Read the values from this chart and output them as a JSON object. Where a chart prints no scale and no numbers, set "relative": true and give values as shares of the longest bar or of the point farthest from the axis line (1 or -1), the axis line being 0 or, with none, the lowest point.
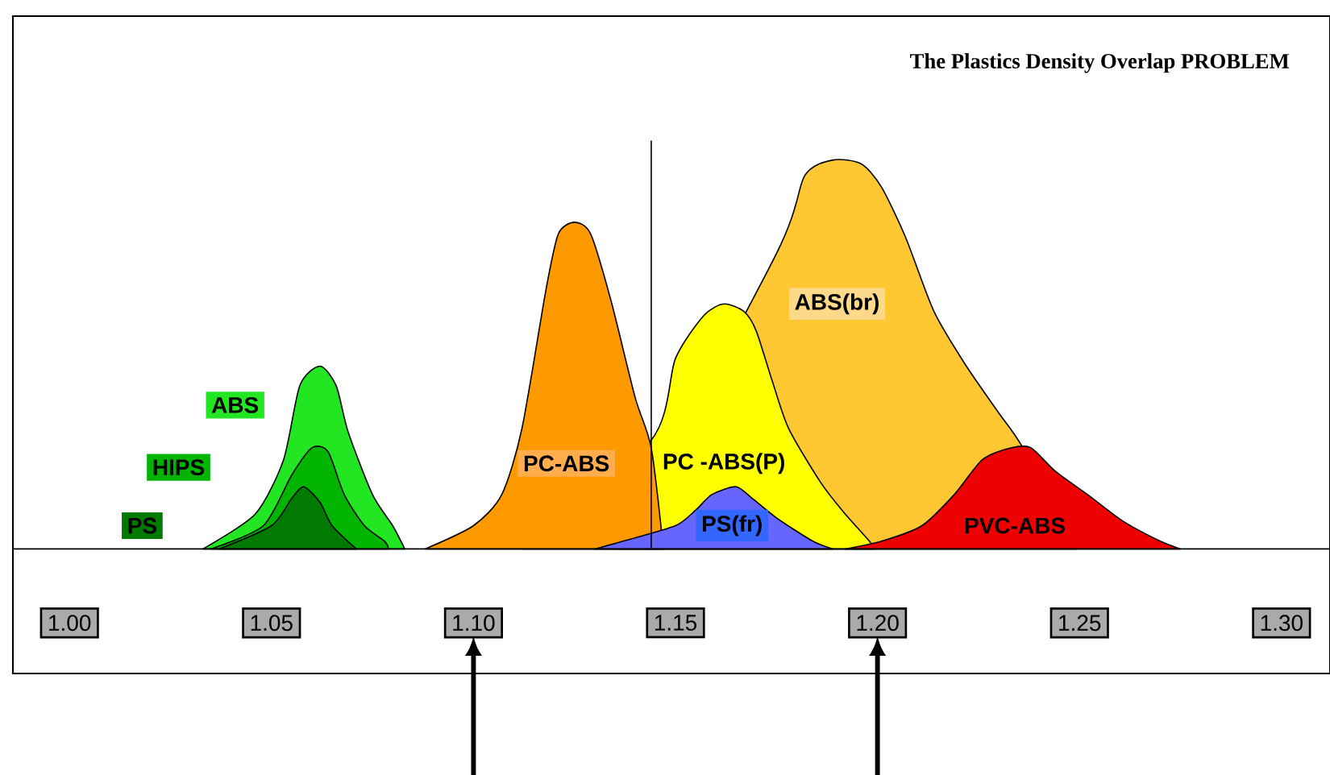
{
  "chart_data": {
    "type": "area",
    "title": "The Plastics Density Overlap PROBLEM",
    "relative": true,
    "legend": false,
    "tick_labels": "x",
    "xlim": [
      0.986,
      1.312
    ],
    "xticks": [
      {
        "value": 1.0,
        "label": "1.00"
      },
      1.05,
      {
        "value": 1.1,
        "label": "1.10"
      },
      1.15,
      {
        "value": 1.2,
        "label": "1.20"
      },
      1.25,
      {
        "value": 1.3,
        "label": "1.30"
      }
    ],
    "ref_lines": [
      {
        "axis": "x",
        "value": 1.144,
        "color": "#000000"
      }
    ],
    "series": [
      {
        "name": "ABS",
        "color": "#22e622",
        "x": [
          1.033,
          1.046,
          1.053,
          1.057,
          1.062,
          1.066,
          1.069,
          1.075,
          1.08,
          1.083
        ],
        "values": [
          0,
          0.09,
          0.23,
          0.42,
          0.47,
          0.42,
          0.3,
          0.14,
          0.06,
          0
        ]
      },
      {
        "name": "HIPS",
        "color": "#00b400",
        "x": [
          1.035,
          1.048,
          1.055,
          1.06,
          1.064,
          1.068,
          1.073,
          1.078,
          1.079
        ],
        "values": [
          0,
          0.06,
          0.19,
          0.26,
          0.25,
          0.14,
          0.06,
          0.02,
          0
        ]
      },
      {
        "name": "PS",
        "color": "#007a00",
        "x": [
          1.037,
          1.05,
          1.055,
          1.058,
          1.062,
          1.065,
          1.071
        ],
        "values": [
          0,
          0.06,
          0.13,
          0.16,
          0.12,
          0.06,
          0
        ]
      },
      {
        "name": "ABS(br)",
        "color": "#ffc833",
        "x": [
          1.136,
          1.138,
          1.168,
          1.175,
          1.182,
          1.189,
          1.196,
          1.201,
          1.207,
          1.214,
          1.222,
          1.23,
          1.236,
          1.249
        ],
        "values": [
          0,
          null,
          null,
          0.76,
          0.96,
          1.0,
          0.99,
          0.93,
          0.8,
          0.61,
          0.47,
          0.35,
          0.26,
          0
        ]
      },
      {
        "name": "PC -ABS(P)",
        "color": "#ffff00",
        "x": [
          1.112,
          1.131,
          1.14,
          1.144,
          1.15,
          1.157,
          1.162,
          1.167,
          1.17,
          1.174,
          1.178,
          1.186,
          1.192,
          1.198,
          1.199
        ],
        "values": [
          0,
          null,
          null,
          0.28,
          0.49,
          0.6,
          0.63,
          0.61,
          0.56,
          0.43,
          0.31,
          0.17,
          0.09,
          0.02,
          0
        ]
      },
      {
        "name": "PC-ABS",
        "color": "#ff9900",
        "x": [
          1.088,
          1.1,
          1.107,
          1.112,
          1.118,
          1.121,
          1.125,
          1.129,
          1.134,
          1.14,
          1.144,
          1.147
        ],
        "values": [
          0,
          0.06,
          0.14,
          0.31,
          0.67,
          0.81,
          0.84,
          0.81,
          0.64,
          0.39,
          0.26,
          0
        ]
      },
      {
        "name": "PS(fr)",
        "color": "#6666ff",
        "x": [
          1.13,
          1.137,
          1.15,
          1.155,
          1.159,
          1.165,
          1.169,
          1.175,
          1.184,
          1.189
        ],
        "values": [
          0,
          0.02,
          0.06,
          0.1,
          0.14,
          0.16,
          0.13,
          0.08,
          0.02,
          0
        ]
      },
      {
        "name": "PVC-ABS",
        "color": "#ee0000",
        "x": [
          1.192,
          1.201,
          1.211,
          1.219,
          1.226,
          1.233,
          1.238,
          1.244,
          1.252,
          1.261,
          1.27,
          1.275
        ],
        "values": [
          0,
          0.02,
          0.06,
          0.14,
          0.23,
          0.26,
          0.26,
          0.2,
          0.14,
          0.07,
          0.02,
          0
        ]
      }
    ]
  }
}
